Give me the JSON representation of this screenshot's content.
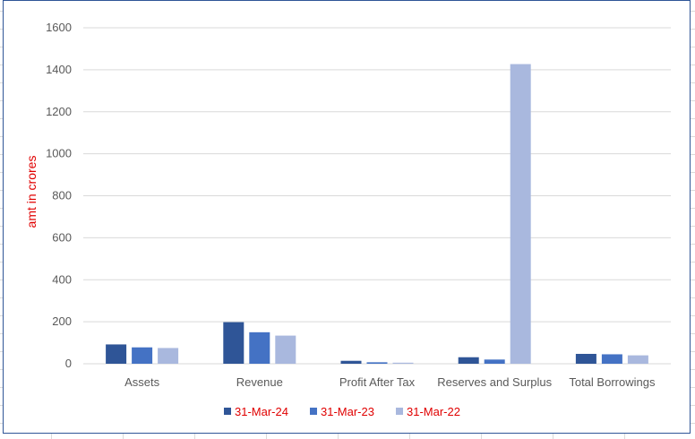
{
  "chart_data": {
    "type": "bar",
    "title": "",
    "xlabel": "",
    "ylabel": "amt in crores",
    "ylim": [
      0,
      1600
    ],
    "yticks": [
      0,
      200,
      400,
      600,
      800,
      1000,
      1200,
      1400,
      1600
    ],
    "grid": true,
    "legend_position": "bottom",
    "categories": [
      "Assets",
      "Revenue",
      "Profit After Tax",
      "Reserves and Surplus",
      "Total Borrowings"
    ],
    "series": [
      {
        "name": "31-Mar-24",
        "color": "#2f5597",
        "values": [
          92,
          198,
          14,
          31,
          47
        ]
      },
      {
        "name": "31-Mar-23",
        "color": "#4472c4",
        "values": [
          78,
          150,
          7,
          20,
          45
        ]
      },
      {
        "name": "31-Mar-22",
        "color": "#a9b8de",
        "values": [
          75,
          134,
          5,
          1427,
          40
        ]
      }
    ],
    "colors": {
      "ylabel": "#e00000",
      "legend_text": "#e00000",
      "tick_text": "#595959",
      "gridline": "#d9d9d9",
      "frame": "#2f5597"
    }
  }
}
